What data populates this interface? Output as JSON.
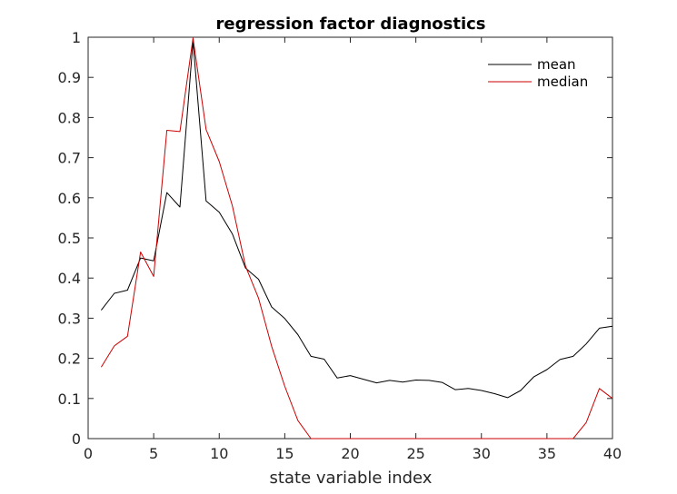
{
  "chart_data": {
    "type": "line",
    "title": "regression factor diagnostics",
    "xlabel": "state variable index",
    "ylabel": "",
    "xlim": [
      0,
      40
    ],
    "ylim": [
      0,
      1
    ],
    "x_ticks": [
      "0",
      "5",
      "10",
      "15",
      "20",
      "25",
      "30",
      "35",
      "40"
    ],
    "y_ticks": [
      "0",
      "0.1",
      "0.2",
      "0.3",
      "0.4",
      "0.5",
      "0.6",
      "0.7",
      "0.8",
      "0.9",
      "1"
    ],
    "grid": false,
    "legend_position": "top-right",
    "x": [
      1,
      2,
      3,
      4,
      5,
      6,
      7,
      8,
      9,
      10,
      11,
      12,
      13,
      14,
      15,
      16,
      17,
      18,
      19,
      20,
      21,
      22,
      23,
      24,
      25,
      26,
      27,
      28,
      29,
      30,
      31,
      32,
      33,
      34,
      35,
      36,
      37,
      38,
      39,
      40
    ],
    "series": [
      {
        "name": "mean",
        "color": "#000000",
        "values": [
          0.32,
          0.362,
          0.37,
          0.45,
          0.443,
          0.613,
          0.577,
          0.99,
          0.592,
          0.564,
          0.51,
          0.425,
          0.397,
          0.328,
          0.299,
          0.259,
          0.205,
          0.198,
          0.151,
          0.157,
          0.148,
          0.139,
          0.145,
          0.141,
          0.146,
          0.145,
          0.14,
          0.122,
          0.125,
          0.12,
          0.112,
          0.102,
          0.12,
          0.154,
          0.172,
          0.197,
          0.205,
          0.236,
          0.275,
          0.28
        ]
      },
      {
        "name": "median",
        "color": "#cc0000",
        "values": [
          0.178,
          0.231,
          0.255,
          0.465,
          0.404,
          0.768,
          0.765,
          0.998,
          0.77,
          0.69,
          0.58,
          0.43,
          0.35,
          0.23,
          0.13,
          0.045,
          0,
          0,
          0,
          0,
          0,
          0,
          0,
          0,
          0,
          0,
          0,
          0,
          0,
          0,
          0,
          0,
          0,
          0,
          0,
          0,
          0,
          0.04,
          0.125,
          0.1
        ]
      }
    ]
  }
}
